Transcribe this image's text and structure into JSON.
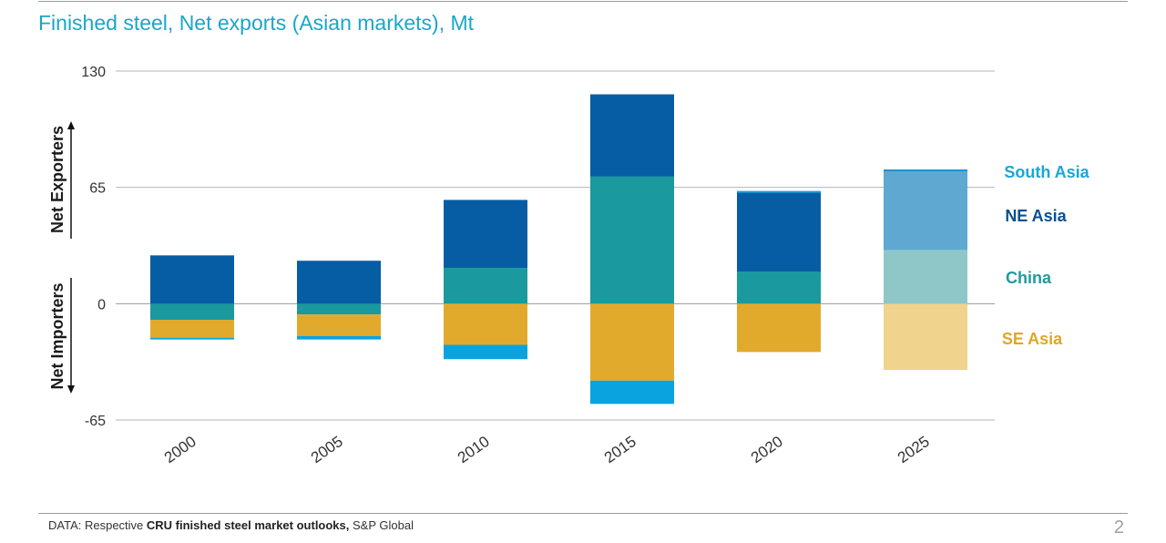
{
  "slide": {
    "title": "Finished steel, Net exports (Asian markets), Mt",
    "footer_prefix": "DATA:  Respective ",
    "footer_bold": "CRU finished steel market outlooks,",
    "footer_suffix": " S&P Global",
    "page_number": "2"
  },
  "chart_data": {
    "type": "bar",
    "stacked": true,
    "title": "Finished steel, Net exports (Asian markets), Mt",
    "ylim": [
      -65,
      130
    ],
    "yticks": [
      "130",
      "65",
      "0",
      "-65"
    ],
    "categories": [
      "2000",
      "2005",
      "2010",
      "2015",
      "2020",
      "2025"
    ],
    "axis_arrow_labels": {
      "up": "Net Exporters",
      "down": "Net Importers"
    },
    "series": [
      {
        "name": "South Asia",
        "color": "#0aa3e0",
        "faded_color": "#1f8fd0",
        "values": [
          -1,
          -2,
          -8,
          -13,
          1,
          1
        ]
      },
      {
        "name": "NE Asia",
        "color": "#065da3",
        "faded_color": "#5fa8d2",
        "values": [
          27,
          24,
          38,
          46,
          44,
          44
        ]
      },
      {
        "name": "China",
        "color": "#1a999e",
        "faded_color": "#8fc7c8",
        "values": [
          -9,
          -6,
          20,
          71,
          18,
          30
        ]
      },
      {
        "name": "SE Asia",
        "color": "#e2aa2d",
        "faded_color": "#f0d38d",
        "values": [
          -10,
          -12,
          -23,
          -43,
          -27,
          -37
        ]
      }
    ],
    "legend_colors": {
      "South Asia": "#1aa6d9",
      "NE Asia": "#0a4f8f",
      "China": "#1f9aa0",
      "SE Asia": "#e0a626"
    },
    "forecast_category": "2025",
    "grid": true,
    "legend_position": "right"
  }
}
